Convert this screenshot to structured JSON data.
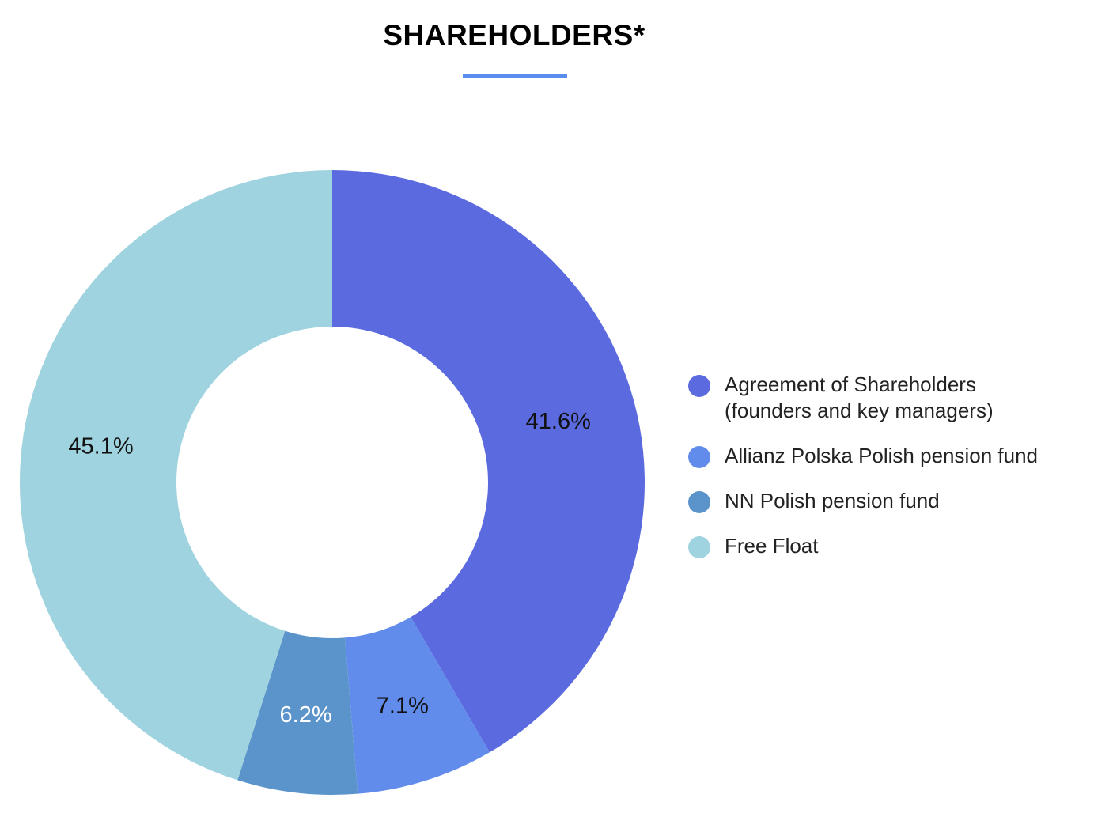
{
  "header": {
    "title": "SHAREHOLDERS*"
  },
  "chart_data": {
    "type": "pie",
    "donut": true,
    "title": "SHAREHOLDERS*",
    "legend_position": "right",
    "categories": [
      "Agreement of Shareholders\n(founders and key managers)",
      "Allianz Polska Polish pension fund",
      "NN Polish pension fund",
      "Free Float"
    ],
    "values": [
      41.6,
      7.1,
      6.2,
      45.1
    ],
    "labels": [
      "41.6%",
      "7.1%",
      "6.2%",
      "45.1%"
    ],
    "colors": [
      "#5b6bdf",
      "#628cec",
      "#5b94cb",
      "#9fd3df"
    ],
    "label_colors": [
      "#111111",
      "#111111",
      "#ffffff",
      "#111111"
    ]
  }
}
